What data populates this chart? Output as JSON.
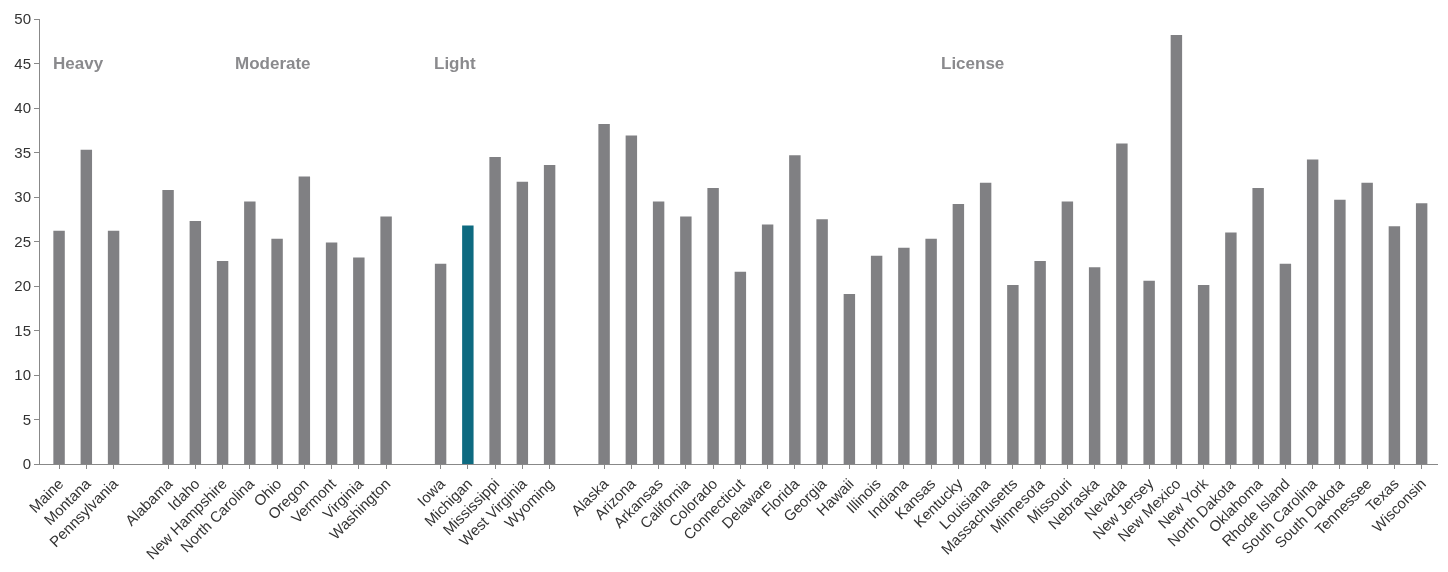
{
  "chart_data": {
    "type": "bar",
    "categories": [
      "Maine",
      "Montana",
      "Pennsylvania",
      null,
      "Alabama",
      "Idaho",
      "New Hampshire",
      "North Carolina",
      "Ohio",
      "Oregon",
      "Vermont",
      "Virginia",
      "Washington",
      null,
      "Iowa",
      "Michigan",
      "Mississippi",
      "West Virginia",
      "Wyoming",
      null,
      "Alaska",
      "Arizona",
      "Arkansas",
      "California",
      "Colorado",
      "Connecticut",
      "Delaware",
      "Florida",
      "Georgia",
      "Hawaii",
      "Illinois",
      "Indiana",
      "Kansas",
      "Kentucky",
      "Louisiana",
      "Massachusetts",
      "Minnesota",
      "Missouri",
      "Nebraska",
      "Nevada",
      "New Jersey",
      "New Mexico",
      "New York",
      "North Dakota",
      "Oklahoma",
      "Rhode Island",
      "South Carolina",
      "South Dakota",
      "Tennessee",
      "Texas",
      "Wisconsin"
    ],
    "values": [
      26.2,
      35.3,
      26.2,
      null,
      30.8,
      27.3,
      22.8,
      29.5,
      25.3,
      32.3,
      24.9,
      23.2,
      27.8,
      null,
      22.5,
      26.8,
      34.5,
      31.7,
      33.6,
      null,
      38.2,
      36.9,
      29.5,
      27.8,
      31.0,
      21.6,
      26.9,
      34.7,
      27.5,
      19.1,
      23.4,
      24.3,
      25.3,
      29.2,
      31.6,
      20.1,
      22.8,
      29.5,
      22.1,
      36.0,
      20.6,
      48.2,
      20.1,
      26.0,
      31.0,
      22.5,
      34.2,
      29.7,
      31.6,
      26.7,
      29.3
    ],
    "colors": [
      "#808083",
      "#808083",
      "#808083",
      "#808083",
      "#808083",
      "#808083",
      "#808083",
      "#808083",
      "#808083",
      "#808083",
      "#808083",
      "#808083",
      "#808083",
      "#808083",
      "#808083",
      "#0e6a80",
      "#808083",
      "#808083",
      "#808083",
      "#808083",
      "#808083",
      "#808083",
      "#808083",
      "#808083",
      "#808083",
      "#808083",
      "#808083",
      "#808083",
      "#808083",
      "#808083",
      "#808083",
      "#808083",
      "#808083",
      "#808083",
      "#808083",
      "#808083",
      "#808083",
      "#808083",
      "#808083",
      "#808083",
      "#808083",
      "#808083",
      "#808083",
      "#808083",
      "#808083",
      "#808083",
      "#808083",
      "#808083",
      "#808083",
      "#808083",
      "#808083"
    ],
    "annotations": [
      "Heavy",
      "Moderate",
      "Light",
      "License"
    ],
    "ylim": [
      0,
      50
    ],
    "yticks": [
      0,
      5,
      10,
      15,
      20,
      25,
      30,
      35,
      40,
      45,
      50
    ]
  }
}
